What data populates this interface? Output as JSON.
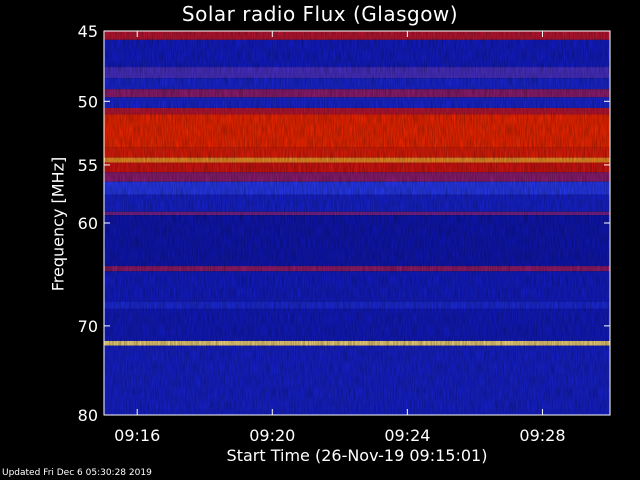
{
  "chart_data": {
    "type": "heatmap",
    "title": "Solar radio Flux (Glasgow)",
    "xlabel": "Start Time (26-Nov-19 09:15:01)",
    "ylabel": "Frequency [MHz]",
    "y_range_mhz": [
      45,
      80
    ],
    "y_ticks": [
      {
        "value": 45,
        "label": "45"
      },
      {
        "value": 50,
        "label": "50"
      },
      {
        "value": 55,
        "label": "55"
      },
      {
        "value": 60,
        "label": "60"
      },
      {
        "value": 70,
        "label": "70"
      },
      {
        "value": 80,
        "label": "80"
      }
    ],
    "x_range": [
      "09:15:01",
      "09:30:00"
    ],
    "x_ticks": [
      {
        "value": "09:16",
        "label": "09:16"
      },
      {
        "value": "09:20",
        "label": "09:20"
      },
      {
        "value": "09:24",
        "label": "09:24"
      },
      {
        "value": "09:28",
        "label": "09:28"
      }
    ],
    "bands": [
      {
        "mhz": [
          45.0,
          45.6
        ],
        "intensity": 0.55
      },
      {
        "mhz": [
          45.6,
          47.5
        ],
        "intensity": 0.15
      },
      {
        "mhz": [
          47.5,
          48.3
        ],
        "intensity": 0.35
      },
      {
        "mhz": [
          48.3,
          49.1
        ],
        "intensity": 0.2
      },
      {
        "mhz": [
          49.1,
          49.7
        ],
        "intensity": 0.45
      },
      {
        "mhz": [
          49.7,
          50.5
        ],
        "intensity": 0.2
      },
      {
        "mhz": [
          50.5,
          51.0
        ],
        "intensity": 0.55
      },
      {
        "mhz": [
          51.0,
          53.6
        ],
        "intensity": 0.78
      },
      {
        "mhz": [
          53.6,
          54.4
        ],
        "intensity": 0.7
      },
      {
        "mhz": [
          54.4,
          54.8
        ],
        "intensity": 0.9
      },
      {
        "mhz": [
          54.8,
          55.6
        ],
        "intensity": 0.62
      },
      {
        "mhz": [
          55.6,
          56.4
        ],
        "intensity": 0.45
      },
      {
        "mhz": [
          56.4,
          57.5
        ],
        "intensity": 0.3
      },
      {
        "mhz": [
          57.5,
          59.0
        ],
        "intensity": 0.18
      },
      {
        "mhz": [
          59.0,
          59.3
        ],
        "intensity": 0.42
      },
      {
        "mhz": [
          59.3,
          64.0
        ],
        "intensity": 0.12
      },
      {
        "mhz": [
          64.0,
          64.5
        ],
        "intensity": 0.46
      },
      {
        "mhz": [
          64.5,
          67.5
        ],
        "intensity": 0.15
      },
      {
        "mhz": [
          67.5,
          68.2
        ],
        "intensity": 0.22
      },
      {
        "mhz": [
          68.2,
          71.6
        ],
        "intensity": 0.14
      },
      {
        "mhz": [
          71.6,
          72.1
        ],
        "intensity": 0.97
      },
      {
        "mhz": [
          72.1,
          80.0
        ],
        "intensity": 0.17
      }
    ],
    "colormap": "blue-red-yellow",
    "colors": {
      "low": "#000080",
      "mid": "#2040ff",
      "high": "#e02000",
      "peak": "#ffff80"
    }
  },
  "footer": {
    "updated": "Updated Fri Dec  6 05:30:28 2019"
  }
}
